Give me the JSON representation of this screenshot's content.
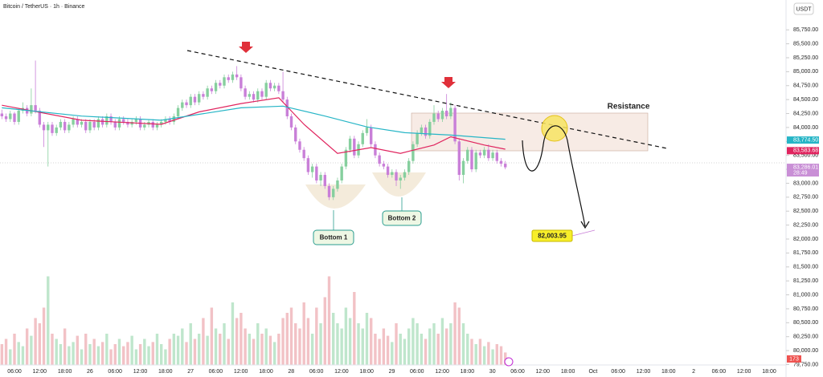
{
  "chart_data": {
    "type": "candlestick",
    "title": "Bitcoin / TetherUS · 1h · Binance",
    "currency": "USDT",
    "ylim": [
      79527,
      86285
    ],
    "yticks": [
      {
        "value": 85750,
        "label": "85,750.00"
      },
      {
        "value": 85500,
        "label": "85,500.00"
      },
      {
        "value": 85250,
        "label": "85,250.00"
      },
      {
        "value": 85000,
        "label": "85,000.00"
      },
      {
        "value": 84750,
        "label": "84,750.00"
      },
      {
        "value": 84500,
        "label": "84,500.00"
      },
      {
        "value": 84250,
        "label": "84,250.00"
      },
      {
        "value": 84000,
        "label": "84,000.00"
      },
      {
        "value": 83750,
        "label": "83,750.00"
      },
      {
        "value": 83500,
        "label": "83,500.00"
      },
      {
        "value": 83250,
        "label": "83,250.00"
      },
      {
        "value": 83000,
        "label": "83,000.00"
      },
      {
        "value": 82750,
        "label": "82,750.00"
      },
      {
        "value": 82500,
        "label": "82,500.00"
      },
      {
        "value": 82250,
        "label": "82,250.00"
      },
      {
        "value": 82000,
        "label": "82,000.00"
      },
      {
        "value": 81750,
        "label": "81,750.00"
      },
      {
        "value": 81500,
        "label": "81,500.00"
      },
      {
        "value": 81250,
        "label": "81,250.00"
      },
      {
        "value": 81000,
        "label": "81,000.00"
      },
      {
        "value": 80750,
        "label": "80,750.00"
      },
      {
        "value": 80500,
        "label": "80,500.00"
      },
      {
        "value": 80250,
        "label": "80,250.00"
      },
      {
        "value": 80000,
        "label": "80,000.00"
      },
      {
        "value": 79750,
        "label": "79,750.00"
      }
    ],
    "x_tick_labels": [
      "06:00",
      "12:00",
      "18:00",
      "26",
      "06:00",
      "12:00",
      "18:00",
      "27",
      "06:00",
      "12:00",
      "18:00",
      "28",
      "06:00",
      "12:00",
      "18:00",
      "29",
      "06:00",
      "12:00",
      "18:00",
      "30",
      "06:00",
      "12:00",
      "18:00",
      "Oct",
      "06:00",
      "12:00",
      "18:00",
      "2",
      "06:00",
      "12:00",
      "18:00"
    ],
    "up_color": "#86cf9e",
    "down_color": "#c97fd8",
    "up_volume_color": "#bfe6cc",
    "down_volume_color": "#f2c2c6",
    "series": [
      {
        "name": "BTCUSDT",
        "ohlc": [
          [
            84250,
            84320,
            84150,
            84200
          ],
          [
            84200,
            84250,
            84100,
            84150
          ],
          [
            84150,
            84300,
            84100,
            84250
          ],
          [
            84250,
            84280,
            84050,
            84100
          ],
          [
            84100,
            84350,
            84050,
            84300
          ],
          [
            84300,
            84450,
            84250,
            84350
          ],
          [
            84350,
            84400,
            84200,
            84250
          ],
          [
            84250,
            84700,
            84200,
            84400
          ],
          [
            84400,
            85200,
            84250,
            84300
          ],
          [
            84300,
            84350,
            84000,
            84050
          ],
          [
            84050,
            84100,
            83650,
            83950
          ],
          [
            83950,
            84100,
            83300,
            84050
          ],
          [
            84050,
            84100,
            83850,
            83900
          ],
          [
            83900,
            84050,
            83850,
            84000
          ],
          [
            84000,
            84150,
            83950,
            84100
          ],
          [
            84100,
            84150,
            83900,
            83950
          ],
          [
            83950,
            84100,
            83900,
            84050
          ],
          [
            84050,
            84200,
            84000,
            84150
          ],
          [
            84150,
            84200,
            84000,
            84050
          ],
          [
            84050,
            84150,
            84000,
            84100
          ],
          [
            84100,
            84150,
            83900,
            83950
          ],
          [
            83950,
            84150,
            83900,
            84100
          ],
          [
            84100,
            84150,
            83950,
            84000
          ],
          [
            84000,
            84200,
            83950,
            84150
          ],
          [
            84150,
            84200,
            84000,
            84050
          ],
          [
            84050,
            84250,
            84000,
            84200
          ],
          [
            84200,
            84250,
            84050,
            84100
          ],
          [
            84100,
            84150,
            83950,
            84000
          ],
          [
            84000,
            84200,
            83950,
            84150
          ],
          [
            84150,
            84200,
            84050,
            84100
          ],
          [
            84100,
            84150,
            84000,
            84050
          ],
          [
            84050,
            84150,
            84000,
            84100
          ],
          [
            84100,
            84200,
            84050,
            84150
          ],
          [
            84150,
            84200,
            83950,
            84000
          ],
          [
            84000,
            84100,
            83950,
            84050
          ],
          [
            84050,
            84150,
            84000,
            84100
          ],
          [
            84100,
            84150,
            83950,
            84000
          ],
          [
            84000,
            84100,
            83950,
            84050
          ],
          [
            84050,
            84150,
            84000,
            84100
          ],
          [
            84100,
            84200,
            84050,
            84150
          ],
          [
            84150,
            84200,
            84050,
            84100
          ],
          [
            84100,
            84250,
            84050,
            84200
          ],
          [
            84200,
            84400,
            84150,
            84350
          ],
          [
            84350,
            84500,
            84300,
            84450
          ],
          [
            84450,
            84500,
            84350,
            84400
          ],
          [
            84400,
            84600,
            84350,
            84550
          ],
          [
            84550,
            84600,
            84400,
            84450
          ],
          [
            84450,
            84650,
            84400,
            84600
          ],
          [
            84600,
            84650,
            84500,
            84550
          ],
          [
            84550,
            84750,
            84500,
            84700
          ],
          [
            84700,
            84750,
            84600,
            84650
          ],
          [
            84650,
            84850,
            84600,
            84800
          ],
          [
            84800,
            84850,
            84700,
            84750
          ],
          [
            84750,
            84950,
            84700,
            84900
          ],
          [
            84900,
            84950,
            84800,
            84850
          ],
          [
            84850,
            85000,
            84800,
            84950
          ],
          [
            84950,
            85100,
            84850,
            84900
          ],
          [
            84900,
            84950,
            84650,
            84700
          ],
          [
            84700,
            84750,
            84500,
            84550
          ],
          [
            84550,
            84650,
            84500,
            84600
          ],
          [
            84600,
            84650,
            84450,
            84500
          ],
          [
            84500,
            84700,
            84450,
            84650
          ],
          [
            84650,
            84700,
            84500,
            84550
          ],
          [
            84550,
            84850,
            84500,
            84800
          ],
          [
            84800,
            84850,
            84650,
            84700
          ],
          [
            84700,
            84800,
            84650,
            84750
          ],
          [
            84750,
            84800,
            84600,
            84650
          ],
          [
            84650,
            85000,
            84450,
            84500
          ],
          [
            84500,
            84550,
            84150,
            84200
          ],
          [
            84200,
            84250,
            83950,
            84000
          ],
          [
            84000,
            84050,
            83700,
            83750
          ],
          [
            83750,
            83800,
            83550,
            83600
          ],
          [
            83600,
            83650,
            83400,
            83450
          ],
          [
            83450,
            83500,
            83150,
            83200
          ],
          [
            83200,
            83350,
            83100,
            83300
          ],
          [
            83300,
            83350,
            83000,
            83050
          ],
          [
            83050,
            83200,
            82950,
            83150
          ],
          [
            83150,
            83200,
            82900,
            82950
          ],
          [
            82950,
            83000,
            82700,
            82750
          ],
          [
            82750,
            82950,
            82700,
            82900
          ],
          [
            82900,
            83100,
            82850,
            83050
          ],
          [
            83050,
            83350,
            83000,
            83300
          ],
          [
            83300,
            83650,
            83250,
            83600
          ],
          [
            83600,
            83850,
            83550,
            83800
          ],
          [
            83800,
            83850,
            83450,
            83500
          ],
          [
            83500,
            83750,
            83450,
            83700
          ],
          [
            83700,
            83950,
            83650,
            83900
          ],
          [
            83900,
            84150,
            83850,
            84000
          ],
          [
            84000,
            84050,
            83650,
            83700
          ],
          [
            83700,
            83750,
            83450,
            83500
          ],
          [
            83500,
            83550,
            83300,
            83350
          ],
          [
            83350,
            83400,
            83250,
            83300
          ],
          [
            83300,
            83350,
            83100,
            83150
          ],
          [
            83150,
            83250,
            83100,
            83200
          ],
          [
            83200,
            83250,
            82950,
            83050
          ],
          [
            83050,
            83150,
            82900,
            83100
          ],
          [
            83100,
            83250,
            83050,
            83200
          ],
          [
            83200,
            83450,
            83150,
            83400
          ],
          [
            83400,
            83750,
            83350,
            83700
          ],
          [
            83700,
            83950,
            83650,
            83900
          ],
          [
            83900,
            84050,
            83850,
            84000
          ],
          [
            84000,
            84050,
            83800,
            83850
          ],
          [
            83850,
            84150,
            83800,
            84100
          ],
          [
            84100,
            84400,
            84050,
            84250
          ],
          [
            84250,
            84300,
            84100,
            84150
          ],
          [
            84150,
            84350,
            84100,
            84300
          ],
          [
            84300,
            84600,
            84150,
            84200
          ],
          [
            84200,
            84450,
            84150,
            84350
          ],
          [
            84350,
            84400,
            83700,
            83750
          ],
          [
            83750,
            83800,
            83050,
            83150
          ],
          [
            83150,
            83450,
            83000,
            83400
          ],
          [
            83400,
            83650,
            83350,
            83600
          ],
          [
            83600,
            83650,
            83200,
            83250
          ],
          [
            83250,
            83600,
            83200,
            83550
          ],
          [
            83550,
            83600,
            83450,
            83500
          ],
          [
            83500,
            83650,
            83450,
            83600
          ],
          [
            83600,
            83700,
            83400,
            83450
          ],
          [
            83450,
            83600,
            83400,
            83550
          ],
          [
            83550,
            83600,
            83350,
            83400
          ],
          [
            83400,
            83450,
            83300,
            83350
          ],
          [
            83350,
            83400,
            83250,
            83286
          ]
        ],
        "volume": [
          20,
          25,
          15,
          30,
          22,
          18,
          35,
          28,
          45,
          40,
          55,
          85,
          30,
          25,
          20,
          35,
          18,
          22,
          28,
          15,
          30,
          20,
          25,
          18,
          22,
          30,
          15,
          20,
          25,
          18,
          22,
          28,
          15,
          20,
          25,
          18,
          22,
          30,
          20,
          15,
          25,
          30,
          28,
          35,
          22,
          40,
          25,
          30,
          45,
          28,
          55,
          35,
          30,
          40,
          25,
          60,
          45,
          50,
          35,
          30,
          25,
          40,
          30,
          35,
          28,
          22,
          30,
          45,
          50,
          55,
          40,
          35,
          60,
          45,
          30,
          55,
          40,
          65,
          85,
          50,
          40,
          35,
          55,
          45,
          70,
          40,
          35,
          50,
          45,
          30,
          25,
          35,
          28,
          22,
          40,
          30,
          25,
          35,
          45,
          40,
          30,
          25,
          35,
          40,
          30,
          45,
          35,
          40,
          60,
          55,
          40,
          30,
          25,
          20,
          25,
          18,
          22,
          15,
          20,
          18,
          12
        ]
      }
    ],
    "vlim": [
      0,
      100
    ],
    "moving_averages": [
      {
        "color": "#e0245e",
        "x": [
          0,
          19,
          38,
          47,
          57,
          66,
          72,
          80,
          88,
          95,
          103,
          107,
          115,
          120
        ],
        "values": [
          84398,
          84130,
          84056,
          84279,
          84428,
          84532,
          84056,
          83536,
          83640,
          83536,
          83685,
          83834,
          83685,
          83610
        ]
      },
      {
        "color": "#26b5c6",
        "x": [
          0,
          19,
          38,
          57,
          67,
          77,
          87,
          96,
          107,
          120
        ],
        "values": [
          84353,
          84204,
          84130,
          84353,
          84383,
          84204,
          84011,
          83907,
          83863,
          83789
        ]
      }
    ],
    "price_labels": [
      {
        "value": 83774.5,
        "label": "83,774.50",
        "color": "#26b5c6"
      },
      {
        "value": 83583.68,
        "label": "83,583.68",
        "color": "#e0245e"
      },
      {
        "value": 83286.01,
        "label": "83,286.01",
        "sub": "28:49",
        "color": "#c98fd6"
      }
    ],
    "volume_label": "173",
    "annotations": {
      "resistance": "Resistance",
      "bottom1": "Bottom 1",
      "bottom2": "Bottom 2",
      "target": "82,003.95"
    }
  }
}
